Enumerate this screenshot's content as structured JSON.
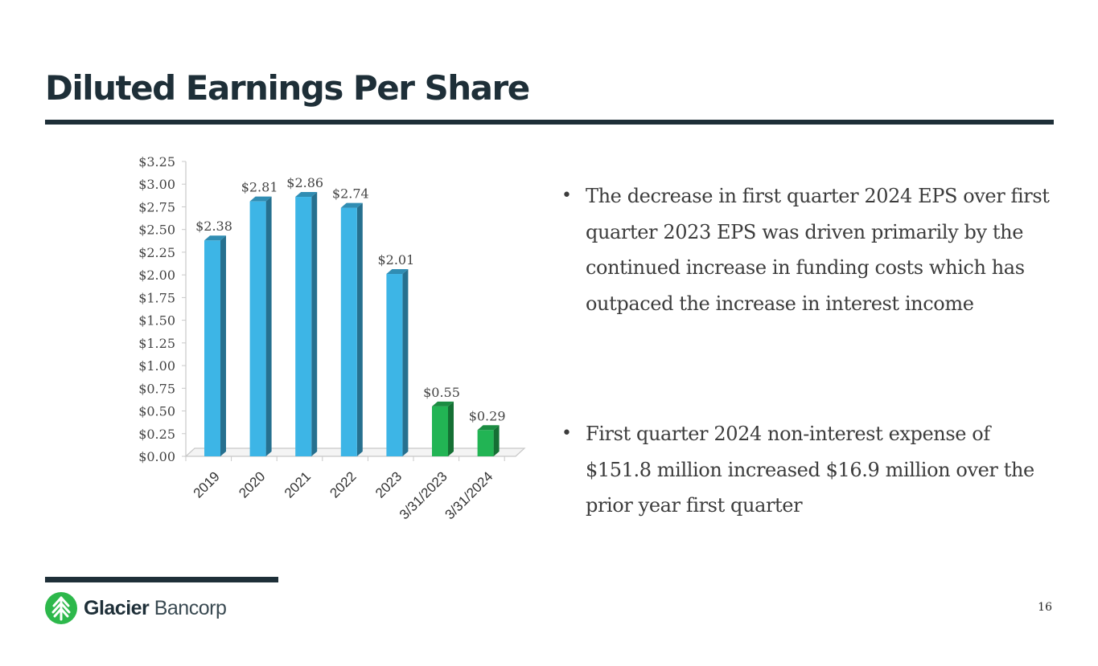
{
  "slide": {
    "title": "Diluted Earnings Per Share",
    "page_number": "16"
  },
  "bullets": [
    "The decrease in first quarter 2024 EPS over first quarter 2023 EPS was driven primarily by the continued increase in funding costs which has outpaced the increase in interest income",
    "First quarter 2024 non-interest expense of $151.8 million increased $16.9 million over the prior year first quarter"
  ],
  "logo": {
    "name_bold": "Glacier",
    "name_light": " Bancorp",
    "icon": "tree-leaf-icon",
    "color": "#2db84b"
  },
  "chart_data": {
    "type": "bar",
    "categories": [
      "2019",
      "2020",
      "2021",
      "2022",
      "2023",
      "3/31/2023",
      "3/31/2024"
    ],
    "values": [
      2.38,
      2.81,
      2.86,
      2.74,
      2.01,
      0.55,
      0.29
    ],
    "data_labels": [
      "$2.38",
      "$2.81",
      "$2.86",
      "$2.74",
      "$2.01",
      "$0.55",
      "$0.29"
    ],
    "bar_colors": [
      "#3db5e6",
      "#3db5e6",
      "#3db5e6",
      "#3db5e6",
      "#3db5e6",
      "#22b454",
      "#22b454"
    ],
    "yticks": [
      "$0.00",
      "$0.25",
      "$0.50",
      "$0.75",
      "$1.00",
      "$1.25",
      "$1.50",
      "$1.75",
      "$2.00",
      "$2.25",
      "$2.50",
      "$2.75",
      "$3.00",
      "$3.25"
    ],
    "ylim": [
      0,
      3.25
    ],
    "style": "3d-column",
    "grid": false,
    "legend": "none",
    "title": "",
    "xlabel": "",
    "ylabel": ""
  }
}
